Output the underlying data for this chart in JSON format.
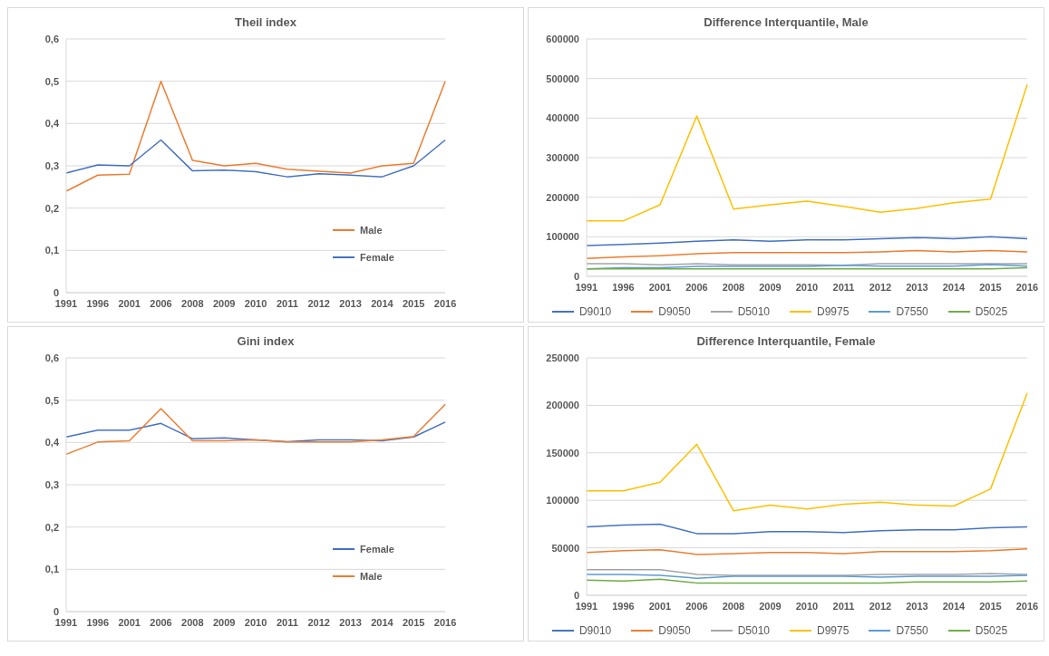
{
  "chart_data": [
    {
      "type": "line",
      "title": "Theil index",
      "categories": [
        "1991",
        "1996",
        "2001",
        "2006",
        "2008",
        "2009",
        "2010",
        "2011",
        "2012",
        "2013",
        "2014",
        "2015",
        "2016"
      ],
      "series": [
        {
          "name": "Male",
          "color": "#ed7d31",
          "values": [
            0.24,
            0.278,
            0.28,
            0.5,
            0.313,
            0.3,
            0.306,
            0.292,
            0.287,
            0.283,
            0.3,
            0.306,
            0.5
          ]
        },
        {
          "name": "Female",
          "color": "#4472c4",
          "values": [
            0.283,
            0.302,
            0.3,
            0.361,
            0.288,
            0.29,
            0.286,
            0.274,
            0.281,
            0.278,
            0.274,
            0.3,
            0.361
          ]
        }
      ],
      "ylim": [
        0,
        0.6
      ],
      "yticks": [
        0,
        {
          "value": 0.1,
          "label": "0,1"
        },
        {
          "value": 0.2,
          "label": "0,2"
        },
        {
          "value": 0.3,
          "label": "0,3"
        },
        {
          "value": 0.4,
          "label": "0,4"
        },
        {
          "value": 0.5,
          "label": "0,5"
        },
        {
          "value": 0.6,
          "label": "0,6"
        }
      ],
      "grid": "y",
      "legend": "bottom right"
    },
    {
      "type": "line",
      "title": "Difference Interquantile, Male",
      "categories": [
        "1991",
        "1996",
        "2001",
        "2006",
        "2008",
        "2009",
        "2010",
        "2011",
        "2012",
        "2013",
        "2014",
        "2015",
        "2016"
      ],
      "series": [
        {
          "name": "D9010",
          "color": "#4472c4",
          "values": [
            78000,
            81000,
            84000,
            89000,
            92000,
            89000,
            92000,
            92000,
            95000,
            98000,
            95000,
            100000,
            95000
          ]
        },
        {
          "name": "D9050",
          "color": "#ed7d31",
          "values": [
            45000,
            49000,
            52000,
            57000,
            60000,
            60000,
            60000,
            60000,
            62000,
            65000,
            62000,
            65000,
            62000
          ]
        },
        {
          "name": "D5010",
          "color": "#a5a5a5",
          "values": [
            32000,
            32000,
            29000,
            32000,
            29000,
            29000,
            29000,
            28000,
            32000,
            32000,
            32000,
            32000,
            32000
          ]
        },
        {
          "name": "D9975",
          "color": "#ffc000",
          "values": [
            140000,
            140000,
            181000,
            405000,
            170000,
            181000,
            190000,
            177000,
            162000,
            172000,
            186000,
            195000,
            485000
          ]
        },
        {
          "name": "D7550",
          "color": "#5b9bd5",
          "values": [
            19000,
            22000,
            22000,
            25000,
            25000,
            25000,
            25000,
            28000,
            26000,
            26000,
            26000,
            30000,
            26000
          ]
        },
        {
          "name": "D5025",
          "color": "#70ad47",
          "values": [
            19000,
            19000,
            19000,
            19000,
            19000,
            19000,
            19000,
            19000,
            19000,
            19000,
            19000,
            19000,
            22000
          ]
        }
      ],
      "ylim": [
        0,
        600000
      ],
      "yticks": [
        0,
        100000,
        200000,
        300000,
        400000,
        500000,
        600000
      ],
      "grid": "y",
      "legend": "bottom"
    },
    {
      "type": "line",
      "title": "Gini index",
      "categories": [
        "1991",
        "1996",
        "2001",
        "2006",
        "2008",
        "2009",
        "2010",
        "2011",
        "2012",
        "2013",
        "2014",
        "2015",
        "2016"
      ],
      "series": [
        {
          "name": "Female",
          "color": "#4472c4",
          "values": [
            0.413,
            0.429,
            0.429,
            0.445,
            0.409,
            0.411,
            0.406,
            0.402,
            0.406,
            0.406,
            0.404,
            0.413,
            0.448
          ]
        },
        {
          "name": "Male",
          "color": "#ed7d31",
          "values": [
            0.372,
            0.401,
            0.404,
            0.48,
            0.404,
            0.404,
            0.406,
            0.401,
            0.401,
            0.401,
            0.406,
            0.414,
            0.49
          ]
        }
      ],
      "ylim": [
        0,
        0.6
      ],
      "yticks": [
        0,
        {
          "value": 0.1,
          "label": "0,1"
        },
        {
          "value": 0.2,
          "label": "0,2"
        },
        {
          "value": 0.3,
          "label": "0,3"
        },
        {
          "value": 0.4,
          "label": "0,4"
        },
        {
          "value": 0.5,
          "label": "0,5"
        },
        {
          "value": 0.6,
          "label": "0,6"
        }
      ],
      "grid": "y",
      "legend": "bottom right"
    },
    {
      "type": "line",
      "title": "Difference Interquantile, Female",
      "categories": [
        "1991",
        "1996",
        "2001",
        "2006",
        "2008",
        "2009",
        "2010",
        "2011",
        "2012",
        "2013",
        "2014",
        "2015",
        "2016"
      ],
      "series": [
        {
          "name": "D9010",
          "color": "#4472c4",
          "values": [
            72000,
            74000,
            75000,
            65000,
            65000,
            67000,
            67000,
            66000,
            68000,
            69000,
            69000,
            71000,
            72000
          ]
        },
        {
          "name": "D9050",
          "color": "#ed7d31",
          "values": [
            45000,
            47000,
            48000,
            43000,
            44000,
            45000,
            45000,
            44000,
            46000,
            46000,
            46000,
            47000,
            49000
          ]
        },
        {
          "name": "D5010",
          "color": "#a5a5a5",
          "values": [
            27000,
            27000,
            27000,
            22000,
            21000,
            21000,
            21000,
            21000,
            22000,
            22000,
            22000,
            23000,
            22000
          ]
        },
        {
          "name": "D9975",
          "color": "#ffc000",
          "values": [
            110000,
            110000,
            119000,
            159000,
            89000,
            95000,
            91000,
            96000,
            98000,
            95000,
            94000,
            112000,
            213000
          ]
        },
        {
          "name": "D7550",
          "color": "#5b9bd5",
          "values": [
            22000,
            22000,
            21000,
            18000,
            20000,
            20000,
            20000,
            20000,
            19000,
            20000,
            20000,
            20000,
            21000
          ]
        },
        {
          "name": "D5025",
          "color": "#70ad47",
          "values": [
            16000,
            15000,
            17000,
            13000,
            13000,
            13000,
            13000,
            13000,
            13000,
            14000,
            14000,
            14000,
            15000
          ]
        }
      ],
      "ylim": [
        0,
        250000
      ],
      "yticks": [
        0,
        50000,
        100000,
        150000,
        200000,
        250000
      ],
      "grid": "y",
      "legend": "bottom"
    }
  ]
}
